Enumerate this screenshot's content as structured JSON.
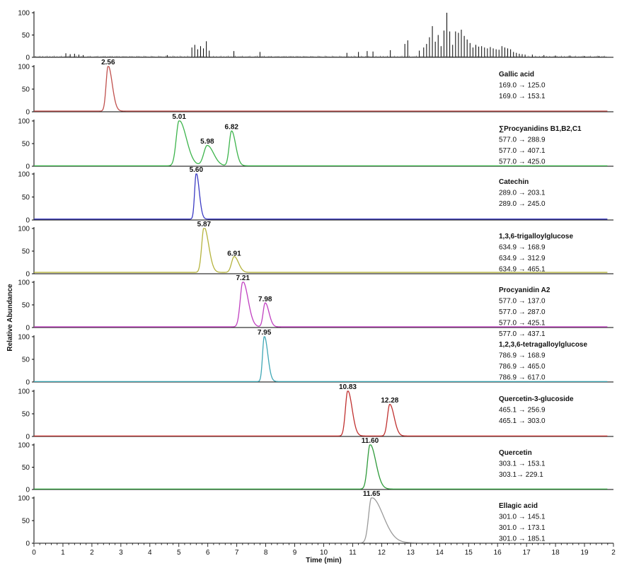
{
  "chart_data": {
    "type": "line",
    "xlabel": "Time (min)",
    "ylabel": "Relative Abundance",
    "xlim": [
      0,
      20
    ],
    "ylim": [
      0,
      100
    ],
    "x_ticks": [
      "0",
      "1",
      "2",
      "3",
      "4",
      "5",
      "6",
      "7",
      "8",
      "9",
      "10",
      "11",
      "12",
      "13",
      "14",
      "15",
      "16",
      "17",
      "18",
      "19",
      "2"
    ],
    "y_ticks": [
      "0",
      "50",
      "100"
    ],
    "grid": false,
    "tic": {
      "color": "#000000",
      "x": [
        1.1,
        1.25,
        1.4,
        1.55,
        1.7,
        4.6,
        5.45,
        5.55,
        5.65,
        5.75,
        5.85,
        5.95,
        6.05,
        6.9,
        7.8,
        10.8,
        11.2,
        11.5,
        11.7,
        12.3,
        12.8,
        12.9,
        13.3,
        13.45,
        13.55,
        13.65,
        13.75,
        13.85,
        13.95,
        14.05,
        14.15,
        14.25,
        14.35,
        14.45,
        14.55,
        14.65,
        14.75,
        14.85,
        14.95,
        15.05,
        15.15,
        15.25,
        15.35,
        15.45,
        15.55,
        15.65,
        15.75,
        15.85,
        15.95,
        16.05,
        16.15,
        16.25,
        16.35,
        16.45,
        16.55,
        16.65,
        16.75,
        16.85,
        16.95,
        17.2,
        17.6,
        18.0,
        18.5,
        19.0,
        19.5
      ],
      "y": [
        9,
        7,
        8,
        6,
        5,
        5,
        22,
        28,
        18,
        25,
        20,
        36,
        15,
        14,
        12,
        10,
        12,
        14,
        13,
        16,
        30,
        38,
        15,
        22,
        30,
        45,
        70,
        35,
        50,
        25,
        60,
        100,
        58,
        28,
        58,
        55,
        62,
        48,
        40,
        32,
        22,
        28,
        24,
        25,
        22,
        20,
        23,
        20,
        18,
        17,
        25,
        22,
        20,
        18,
        12,
        10,
        8,
        7,
        6,
        6,
        5,
        4,
        4,
        3,
        3
      ]
    },
    "series": [
      {
        "name": "Gallic acid",
        "transitions": [
          "169.0 → 125.0",
          "169.0 → 153.1"
        ],
        "color": "#c0504d",
        "peaks": [
          {
            "x": 2.56,
            "y": 100,
            "label": "2.56"
          }
        ]
      },
      {
        "name": "∑Procyanidins B1,B2,C1",
        "transitions": [
          "577.0 → 288.9",
          "577.0 → 407.1",
          "577.0 → 425.0"
        ],
        "color": "#3cb44b",
        "peaks": [
          {
            "x": 5.01,
            "y": 100,
            "label": "5.01"
          },
          {
            "x": 5.98,
            "y": 45,
            "label": "5.98"
          },
          {
            "x": 6.82,
            "y": 77,
            "label": "6.82"
          }
        ]
      },
      {
        "name": "Catechin",
        "transitions": [
          "289.0 → 203.1",
          "289.0 → 245.0"
        ],
        "color": "#3b3bc4",
        "peaks": [
          {
            "x": 5.6,
            "y": 100,
            "label": "5.60"
          }
        ]
      },
      {
        "name": "1,3,6-trigalloylglucose",
        "transitions": [
          "634.9 → 168.9",
          "634.9 → 312.9",
          "634.9 → 465.1"
        ],
        "color": "#b5b33c",
        "peaks": [
          {
            "x": 5.87,
            "y": 100,
            "label": "5.87"
          },
          {
            "x": 6.91,
            "y": 35,
            "label": "6.91"
          }
        ]
      },
      {
        "name": "Procyanidin A2",
        "transitions": [
          "577.0 → 137.0",
          "577.0 → 287.0",
          "577.0 → 425.1",
          "577.0 → 437.1"
        ],
        "color": "#c040c0",
        "peaks": [
          {
            "x": 7.21,
            "y": 100,
            "label": "7.21"
          },
          {
            "x": 7.98,
            "y": 53,
            "label": "7.98"
          }
        ]
      },
      {
        "name": "1,2,3,6-tetragalloylglucose",
        "transitions": [
          "786.9 → 168.9",
          "786.9 → 465.0",
          "786.9 → 617.0"
        ],
        "color": "#3fa7b5",
        "peaks": [
          {
            "x": 7.95,
            "y": 100,
            "label": "7.95"
          }
        ]
      },
      {
        "name": "Quercetin-3-glucoside",
        "transitions": [
          "465.1 → 256.9",
          "465.1 → 303.0"
        ],
        "color": "#c0302f",
        "peaks": [
          {
            "x": 10.83,
            "y": 100,
            "label": "10.83"
          },
          {
            "x": 12.28,
            "y": 70,
            "label": "12.28"
          }
        ]
      },
      {
        "name": "Quercetin",
        "transitions": [
          "303.1 → 153.1",
          "303.1→ 229.1"
        ],
        "color": "#2e9a3a",
        "peaks": [
          {
            "x": 11.6,
            "y": 100,
            "label": "11.60"
          }
        ]
      },
      {
        "name": "Ellagic acid",
        "transitions": [
          "301.0 → 145.1",
          "301.0 → 173.1",
          "301.0 → 185.1"
        ],
        "color": "#9a9a9a",
        "peaks": [
          {
            "x": 11.65,
            "y": 100,
            "label": "11.65"
          }
        ]
      }
    ]
  }
}
